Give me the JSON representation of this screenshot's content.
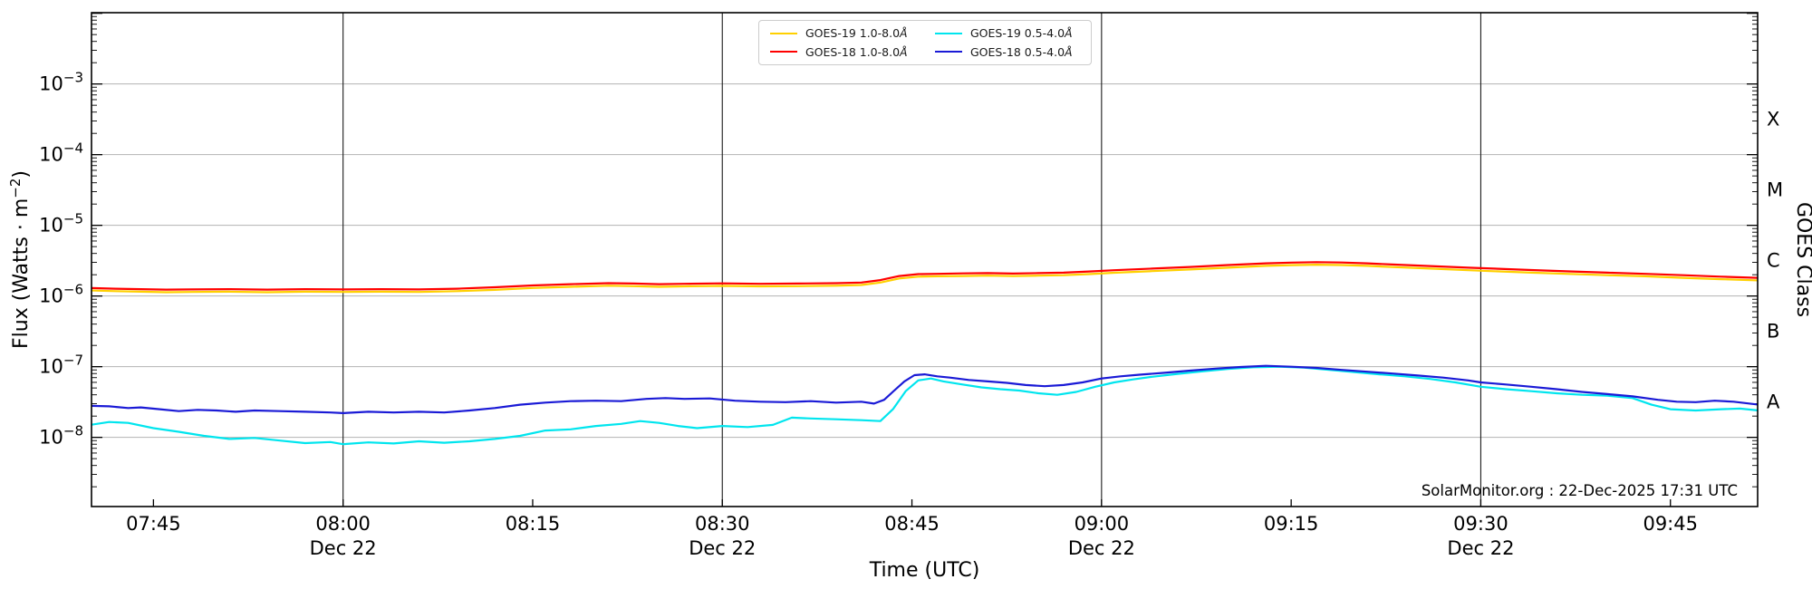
{
  "annotation": "SolarMonitor.org : 22-Dec-2025 17:31 UTC",
  "legend": {
    "items": [
      {
        "label": "GOES-19 1.0-8.0",
        "unit": "Å",
        "color": "#ffd000"
      },
      {
        "label": "GOES-19 0.5-4.0",
        "unit": "Å",
        "color": "#00e5ee"
      },
      {
        "label": "GOES-18 1.0-8.0",
        "unit": "Å",
        "color": "#ff0000"
      },
      {
        "label": "GOES-18 0.5-4.0",
        "unit": "Å",
        "color": "#1a1ad6"
      }
    ]
  },
  "chart_data": {
    "type": "line",
    "title": "",
    "xlabel": "Time (UTC)",
    "ylabel_left": {
      "pre": "Flux (Watts · m",
      "sup": "−2",
      "post": ")"
    },
    "ylabel_right": "GOES Class",
    "grid": true,
    "legend_position": "top-center",
    "x_axis": {
      "range_minutes": [
        460.1,
        591.9
      ],
      "ticks": [
        {
          "m": 465,
          "label": "07:45"
        },
        {
          "m": 480,
          "label": "08:00",
          "sub": "Dec 22"
        },
        {
          "m": 495,
          "label": "08:15"
        },
        {
          "m": 510,
          "label": "08:30",
          "sub": "Dec 22"
        },
        {
          "m": 525,
          "label": "08:45"
        },
        {
          "m": 540,
          "label": "09:00",
          "sub": "Dec 22"
        },
        {
          "m": 555,
          "label": "09:15"
        },
        {
          "m": 570,
          "label": "09:30",
          "sub": "Dec 22"
        },
        {
          "m": 585,
          "label": "09:45"
        }
      ],
      "date_lines_minutes": [
        480,
        510,
        540,
        570
      ]
    },
    "y_axis": {
      "scale": "log",
      "min": 1.05e-09,
      "max": 0.0102,
      "decade_label_exponents": [
        -3,
        -4,
        -5,
        -6,
        -7,
        -8
      ],
      "gridline_color": "#b3b3b3"
    },
    "goes_class_labels": [
      {
        "label": "X",
        "log_flux": -3.5
      },
      {
        "label": "M",
        "log_flux": -4.5
      },
      {
        "label": "C",
        "log_flux": -5.5
      },
      {
        "label": "B",
        "log_flux": -6.5
      },
      {
        "label": "A",
        "log_flux": -7.5
      }
    ],
    "series": [
      {
        "name": "GOES-19 1.0-8.0Å",
        "color": "#ffd000",
        "points": [
          [
            460,
            1.2e-06
          ],
          [
            462,
            1.17e-06
          ],
          [
            464,
            1.15e-06
          ],
          [
            466,
            1.13e-06
          ],
          [
            468,
            1.14e-06
          ],
          [
            471,
            1.15e-06
          ],
          [
            474,
            1.13e-06
          ],
          [
            477,
            1.15e-06
          ],
          [
            480,
            1.14e-06
          ],
          [
            483,
            1.15e-06
          ],
          [
            486,
            1.14e-06
          ],
          [
            489,
            1.17e-06
          ],
          [
            492,
            1.22e-06
          ],
          [
            495,
            1.3e-06
          ],
          [
            498,
            1.35e-06
          ],
          [
            501,
            1.4e-06
          ],
          [
            503,
            1.38e-06
          ],
          [
            505,
            1.35e-06
          ],
          [
            507,
            1.37e-06
          ],
          [
            510,
            1.39e-06
          ],
          [
            513,
            1.37e-06
          ],
          [
            516,
            1.38e-06
          ],
          [
            519,
            1.4e-06
          ],
          [
            521,
            1.43e-06
          ],
          [
            522.5,
            1.55e-06
          ],
          [
            524,
            1.77e-06
          ],
          [
            525.5,
            1.88e-06
          ],
          [
            527,
            1.9e-06
          ],
          [
            529,
            1.92e-06
          ],
          [
            531,
            1.94e-06
          ],
          [
            533,
            1.91e-06
          ],
          [
            535,
            1.94e-06
          ],
          [
            537,
            1.97e-06
          ],
          [
            539,
            2.04e-06
          ],
          [
            541,
            2.13e-06
          ],
          [
            544,
            2.25e-06
          ],
          [
            547,
            2.37e-06
          ],
          [
            550,
            2.52e-06
          ],
          [
            553,
            2.67e-06
          ],
          [
            555,
            2.73e-06
          ],
          [
            557,
            2.77e-06
          ],
          [
            559,
            2.74e-06
          ],
          [
            561,
            2.67e-06
          ],
          [
            563,
            2.57e-06
          ],
          [
            566,
            2.44e-06
          ],
          [
            569,
            2.32e-06
          ],
          [
            571,
            2.24e-06
          ],
          [
            574,
            2.14e-06
          ],
          [
            577,
            2.05e-06
          ],
          [
            580,
            1.97e-06
          ],
          [
            583,
            1.9e-06
          ],
          [
            586,
            1.81e-06
          ],
          [
            589,
            1.73e-06
          ],
          [
            592,
            1.66e-06
          ]
        ]
      },
      {
        "name": "GOES-18 1.0-8.0Å",
        "color": "#ff0000",
        "points": [
          [
            460,
            1.3e-06
          ],
          [
            462,
            1.27e-06
          ],
          [
            464,
            1.25e-06
          ],
          [
            466,
            1.23e-06
          ],
          [
            468,
            1.24e-06
          ],
          [
            471,
            1.25e-06
          ],
          [
            474,
            1.23e-06
          ],
          [
            477,
            1.25e-06
          ],
          [
            480,
            1.24e-06
          ],
          [
            483,
            1.25e-06
          ],
          [
            486,
            1.24e-06
          ],
          [
            489,
            1.27e-06
          ],
          [
            492,
            1.33e-06
          ],
          [
            495,
            1.41e-06
          ],
          [
            498,
            1.47e-06
          ],
          [
            501,
            1.52e-06
          ],
          [
            503,
            1.5e-06
          ],
          [
            505,
            1.47e-06
          ],
          [
            507,
            1.49e-06
          ],
          [
            510,
            1.51e-06
          ],
          [
            513,
            1.49e-06
          ],
          [
            516,
            1.5e-06
          ],
          [
            519,
            1.52e-06
          ],
          [
            521,
            1.55e-06
          ],
          [
            522.5,
            1.68e-06
          ],
          [
            524,
            1.92e-06
          ],
          [
            525.5,
            2.04e-06
          ],
          [
            527,
            2.06e-06
          ],
          [
            529,
            2.09e-06
          ],
          [
            531,
            2.11e-06
          ],
          [
            533,
            2.08e-06
          ],
          [
            535,
            2.11e-06
          ],
          [
            537,
            2.14e-06
          ],
          [
            539,
            2.22e-06
          ],
          [
            541,
            2.32e-06
          ],
          [
            544,
            2.44e-06
          ],
          [
            547,
            2.58e-06
          ],
          [
            550,
            2.74e-06
          ],
          [
            553,
            2.9e-06
          ],
          [
            555,
            2.97e-06
          ],
          [
            557,
            3.01e-06
          ],
          [
            559,
            2.98e-06
          ],
          [
            561,
            2.9e-06
          ],
          [
            563,
            2.79e-06
          ],
          [
            566,
            2.65e-06
          ],
          [
            569,
            2.52e-06
          ],
          [
            571,
            2.44e-06
          ],
          [
            574,
            2.33e-06
          ],
          [
            577,
            2.23e-06
          ],
          [
            580,
            2.14e-06
          ],
          [
            583,
            2.06e-06
          ],
          [
            586,
            1.97e-06
          ],
          [
            589,
            1.88e-06
          ],
          [
            592,
            1.8e-06
          ]
        ]
      },
      {
        "name": "GOES-19 0.5-4.0Å",
        "color": "#00e5ee",
        "points": [
          [
            460,
            1.5e-08
          ],
          [
            461.5,
            1.65e-08
          ],
          [
            463,
            1.6e-08
          ],
          [
            465,
            1.35e-08
          ],
          [
            467,
            1.2e-08
          ],
          [
            469,
            1.05e-08
          ],
          [
            471,
            9.5e-09
          ],
          [
            473,
            9.8e-09
          ],
          [
            475,
            9e-09
          ],
          [
            477,
            8.3e-09
          ],
          [
            479,
            8.6e-09
          ],
          [
            480,
            8e-09
          ],
          [
            482,
            8.5e-09
          ],
          [
            484,
            8.2e-09
          ],
          [
            486,
            8.8e-09
          ],
          [
            488,
            8.4e-09
          ],
          [
            490,
            8.8e-09
          ],
          [
            492,
            9.5e-09
          ],
          [
            494,
            1.05e-08
          ],
          [
            496,
            1.25e-08
          ],
          [
            498,
            1.3e-08
          ],
          [
            500,
            1.45e-08
          ],
          [
            502,
            1.55e-08
          ],
          [
            503.5,
            1.7e-08
          ],
          [
            505,
            1.6e-08
          ],
          [
            506.5,
            1.45e-08
          ],
          [
            508,
            1.35e-08
          ],
          [
            510,
            1.45e-08
          ],
          [
            512,
            1.4e-08
          ],
          [
            514,
            1.5e-08
          ],
          [
            515.5,
            1.9e-08
          ],
          [
            517,
            1.85e-08
          ],
          [
            519,
            1.8e-08
          ],
          [
            521,
            1.75e-08
          ],
          [
            522.5,
            1.7e-08
          ],
          [
            523.5,
            2.5e-08
          ],
          [
            524.5,
            4.5e-08
          ],
          [
            525.5,
            6.4e-08
          ],
          [
            526.5,
            6.8e-08
          ],
          [
            527.5,
            6.2e-08
          ],
          [
            529,
            5.6e-08
          ],
          [
            530.5,
            5.1e-08
          ],
          [
            532,
            4.8e-08
          ],
          [
            533.5,
            4.6e-08
          ],
          [
            535,
            4.2e-08
          ],
          [
            536.5,
            4e-08
          ],
          [
            538,
            4.4e-08
          ],
          [
            539.5,
            5.2e-08
          ],
          [
            541,
            6e-08
          ],
          [
            542.5,
            6.6e-08
          ],
          [
            544,
            7.2e-08
          ],
          [
            546,
            7.9e-08
          ],
          [
            548,
            8.6e-08
          ],
          [
            550,
            9.3e-08
          ],
          [
            552,
            9.8e-08
          ],
          [
            554,
            1e-07
          ],
          [
            556,
            9.7e-08
          ],
          [
            558,
            9e-08
          ],
          [
            560,
            8.4e-08
          ],
          [
            562,
            7.8e-08
          ],
          [
            564,
            7.3e-08
          ],
          [
            566,
            6.7e-08
          ],
          [
            568,
            6e-08
          ],
          [
            570,
            5.2e-08
          ],
          [
            572,
            4.8e-08
          ],
          [
            574,
            4.5e-08
          ],
          [
            576,
            4.2e-08
          ],
          [
            578,
            4e-08
          ],
          [
            580,
            3.9e-08
          ],
          [
            582,
            3.6e-08
          ],
          [
            583.5,
            2.9e-08
          ],
          [
            585,
            2.5e-08
          ],
          [
            587,
            2.4e-08
          ],
          [
            589,
            2.5e-08
          ],
          [
            590.5,
            2.55e-08
          ],
          [
            592,
            2.4e-08
          ]
        ]
      },
      {
        "name": "GOES-18 0.5-4.0Å",
        "color": "#1a1ad6",
        "points": [
          [
            460,
            2.8e-08
          ],
          [
            461.5,
            2.75e-08
          ],
          [
            463,
            2.6e-08
          ],
          [
            464,
            2.65e-08
          ],
          [
            465.5,
            2.5e-08
          ],
          [
            467,
            2.35e-08
          ],
          [
            468.5,
            2.45e-08
          ],
          [
            470,
            2.4e-08
          ],
          [
            471.5,
            2.3e-08
          ],
          [
            473,
            2.4e-08
          ],
          [
            475,
            2.35e-08
          ],
          [
            477,
            2.3e-08
          ],
          [
            479,
            2.25e-08
          ],
          [
            480,
            2.2e-08
          ],
          [
            482,
            2.3e-08
          ],
          [
            484,
            2.25e-08
          ],
          [
            486,
            2.3e-08
          ],
          [
            488,
            2.25e-08
          ],
          [
            490,
            2.4e-08
          ],
          [
            492,
            2.6e-08
          ],
          [
            494,
            2.9e-08
          ],
          [
            496,
            3.1e-08
          ],
          [
            498,
            3.25e-08
          ],
          [
            500,
            3.3e-08
          ],
          [
            502,
            3.25e-08
          ],
          [
            504,
            3.5e-08
          ],
          [
            505.5,
            3.6e-08
          ],
          [
            507,
            3.5e-08
          ],
          [
            509,
            3.55e-08
          ],
          [
            511,
            3.3e-08
          ],
          [
            513,
            3.2e-08
          ],
          [
            515,
            3.15e-08
          ],
          [
            517,
            3.25e-08
          ],
          [
            519,
            3.1e-08
          ],
          [
            521,
            3.2e-08
          ],
          [
            522,
            3e-08
          ],
          [
            522.8,
            3.4e-08
          ],
          [
            523.6,
            4.6e-08
          ],
          [
            524.4,
            6.2e-08
          ],
          [
            525.2,
            7.6e-08
          ],
          [
            526,
            7.8e-08
          ],
          [
            527,
            7.3e-08
          ],
          [
            528,
            7e-08
          ],
          [
            529.5,
            6.5e-08
          ],
          [
            531,
            6.2e-08
          ],
          [
            532.5,
            5.9e-08
          ],
          [
            534,
            5.5e-08
          ],
          [
            535.5,
            5.3e-08
          ],
          [
            537,
            5.5e-08
          ],
          [
            538.5,
            6e-08
          ],
          [
            540,
            6.8e-08
          ],
          [
            541.5,
            7.3e-08
          ],
          [
            543,
            7.7e-08
          ],
          [
            545,
            8.2e-08
          ],
          [
            547,
            8.8e-08
          ],
          [
            549,
            9.4e-08
          ],
          [
            551,
            9.9e-08
          ],
          [
            553,
            1.03e-07
          ],
          [
            555,
            1e-07
          ],
          [
            557,
            9.6e-08
          ],
          [
            559,
            9e-08
          ],
          [
            561,
            8.5e-08
          ],
          [
            563,
            8e-08
          ],
          [
            565,
            7.5e-08
          ],
          [
            567,
            7e-08
          ],
          [
            569,
            6.4e-08
          ],
          [
            570,
            6e-08
          ],
          [
            572,
            5.6e-08
          ],
          [
            574,
            5.2e-08
          ],
          [
            576,
            4.8e-08
          ],
          [
            578,
            4.4e-08
          ],
          [
            580,
            4.1e-08
          ],
          [
            582,
            3.8e-08
          ],
          [
            584,
            3.4e-08
          ],
          [
            585.5,
            3.2e-08
          ],
          [
            587,
            3.15e-08
          ],
          [
            588.5,
            3.3e-08
          ],
          [
            590,
            3.2e-08
          ],
          [
            592,
            2.9e-08
          ]
        ]
      }
    ]
  }
}
